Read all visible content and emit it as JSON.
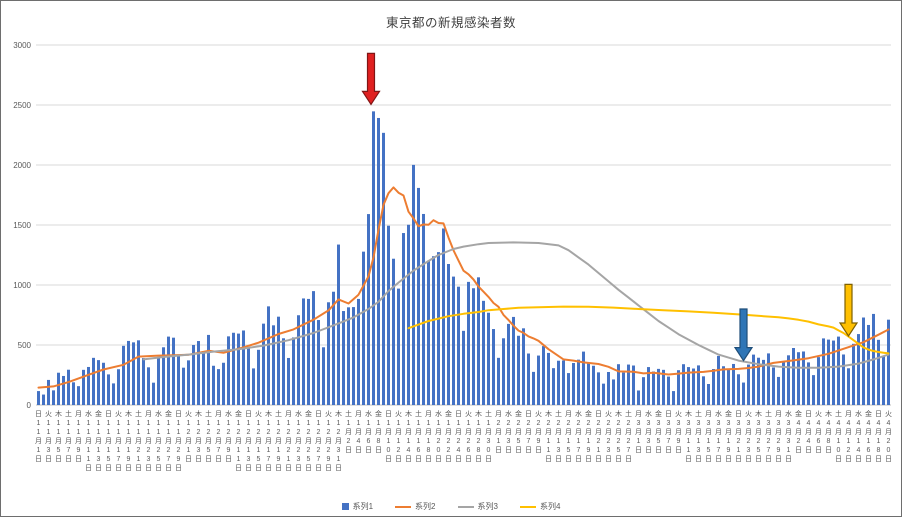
{
  "chart_data": {
    "type": "combo-bar-line",
    "title": "東京都の新規感染者数",
    "grid": true,
    "legend_position": "bottom",
    "y_axis": {
      "min": 0,
      "max": 3000,
      "tick_step": 500
    },
    "y_ticks": [
      0,
      500,
      1000,
      1500,
      2000,
      2500,
      3000
    ],
    "x_tick_interval_days": 2,
    "x_range": "11月1日〜4月20日",
    "colors": {
      "grid": "#d9d9d9",
      "axis_line": "#bfbfbf",
      "tick_text": "#595959",
      "title_text": "#404040",
      "frame_border": "#6e6e6e"
    },
    "x_tick_labels": [
      "日|11月1日",
      "火|11月3日",
      "木|11月5日",
      "土|11月7日",
      "月|11月9日",
      "水|11月11日",
      "金|11月13日",
      "日|11月15日",
      "火|11月17日",
      "木|11月19日",
      "土|11月21日",
      "月|11月23日",
      "水|11月25日",
      "金|11月27日",
      "日|11月29日",
      "火|12月1日",
      "木|12月3日",
      "土|12月5日",
      "月|12月7日",
      "水|12月9日",
      "金|12月11日",
      "日|12月13日",
      "火|12月15日",
      "木|12月17日",
      "土|12月19日",
      "月|12月21日",
      "水|12月23日",
      "金|12月25日",
      "日|12月27日",
      "火|12月29日",
      "木|12月31日",
      "土|1月2日",
      "月|1月4日",
      "水|1月6日",
      "金|1月8日",
      "日|1月10日",
      "火|1月12日",
      "木|1月14日",
      "土|1月16日",
      "月|1月18日",
      "水|1月20日",
      "金|1月22日",
      "日|1月24日",
      "火|1月26日",
      "木|1月28日",
      "土|1月30日",
      "月|2月1日",
      "水|2月3日",
      "金|2月5日",
      "日|2月7日",
      "火|2月9日",
      "木|2月11日",
      "土|2月13日",
      "月|2月15日",
      "水|2月17日",
      "金|2月19日",
      "日|2月21日",
      "火|2月23日",
      "木|2月25日",
      "土|2月27日",
      "月|3月1日",
      "水|3月3日",
      "金|3月5日",
      "日|3月7日",
      "火|3月9日",
      "木|3月11日",
      "土|3月13日",
      "月|3月15日",
      "水|3月17日",
      "金|3月19日",
      "日|3月21日",
      "火|3月23日",
      "木|3月25日",
      "土|3月27日",
      "月|3月29日",
      "水|3月31日",
      "金|4月2日",
      "日|4月4日",
      "火|4月6日",
      "木|4月8日",
      "土|4月10日",
      "月|4月12日",
      "水|4月14日",
      "金|4月16日",
      "日|4月18日",
      "火|4月20日"
    ],
    "series": [
      {
        "name": "系列1",
        "type": "bar",
        "color": "#4472C4",
        "values": [
          116,
          87,
          209,
          122,
          269,
          242,
          294,
          189,
          157,
          293,
          317,
          393,
          374,
          352,
          255,
          180,
          298,
          493,
          534,
          522,
          539,
          391,
          314,
          186,
          401,
          481,
          570,
          561,
          418,
          311,
          372,
          500,
          533,
          449,
          584,
          327,
          299,
          352,
          572,
          602,
          595,
          621,
          480,
          305,
          460,
          678,
          822,
          664,
          736,
          556,
          392,
          563,
          748,
          888,
          884,
          949,
          708,
          481,
          856,
          944,
          1337,
          783,
          814,
          816,
          884,
          1278,
          1591,
          2447,
          2392,
          2268,
          1494,
          1219,
          970,
          1433,
          1502,
          2001,
          1809,
          1592,
          1204,
          1240,
          1274,
          1471,
          1175,
          1070,
          986,
          618,
          1026,
          973,
          1064,
          868,
          769,
          633,
          393,
          556,
          676,
          734,
          577,
          639,
          429,
          276,
          412,
          491,
          434,
          307,
          369,
          371,
          266,
          350,
          378,
          445,
          353,
          327,
          272,
          178,
          275,
          213,
          340,
          270,
          337,
          329,
          121,
          232,
          316,
          279,
          301,
          293,
          237,
          116,
          290,
          340,
          316,
          304,
          330,
          239,
          175,
          300,
          409,
          323,
          303,
          342,
          256,
          187,
          337,
          420,
          394,
          376,
          430,
          313,
          234,
          364,
          414,
          475,
          440,
          446,
          355,
          249,
          399,
          555,
          545,
          537,
          570,
          421,
          306,
          510,
          591,
          729,
          667,
          759,
          543,
          405,
          711
        ]
      },
      {
        "name": "系列2",
        "type": "line",
        "color": "#ED7D31",
        "points": [
          [
            0,
            145
          ],
          [
            3,
            155
          ],
          [
            6,
            191
          ],
          [
            10,
            252
          ],
          [
            13,
            296
          ],
          [
            17,
            335
          ],
          [
            20,
            403
          ],
          [
            24,
            412
          ],
          [
            27,
            415
          ],
          [
            30,
            418
          ],
          [
            34,
            452
          ],
          [
            37,
            435
          ],
          [
            41,
            481
          ],
          [
            44,
            519
          ],
          [
            48,
            592
          ],
          [
            51,
            630
          ],
          [
            55,
            711
          ],
          [
            58,
            788
          ],
          [
            60,
            880
          ],
          [
            62,
            846
          ],
          [
            64,
            919
          ],
          [
            66,
            1072
          ],
          [
            67,
            1230
          ],
          [
            68,
            1460
          ],
          [
            69,
            1668
          ],
          [
            70,
            1765
          ],
          [
            71,
            1813
          ],
          [
            72,
            1769
          ],
          [
            73,
            1746
          ],
          [
            74,
            1611
          ],
          [
            75,
            1555
          ],
          [
            76,
            1490
          ],
          [
            77,
            1504
          ],
          [
            78,
            1502
          ],
          [
            79,
            1540
          ],
          [
            80,
            1517
          ],
          [
            81,
            1513
          ],
          [
            82,
            1395
          ],
          [
            83,
            1289
          ],
          [
            84,
            1203
          ],
          [
            85,
            1119
          ],
          [
            86,
            1089
          ],
          [
            87,
            1046
          ],
          [
            88,
            987
          ],
          [
            89,
            944
          ],
          [
            90,
            901
          ],
          [
            91,
            850
          ],
          [
            92,
            818
          ],
          [
            93,
            751
          ],
          [
            94,
            708
          ],
          [
            95,
            661
          ],
          [
            96,
            620
          ],
          [
            97,
            601
          ],
          [
            98,
            572
          ],
          [
            99,
            555
          ],
          [
            100,
            535
          ],
          [
            102,
            465
          ],
          [
            105,
            380
          ],
          [
            107,
            370
          ],
          [
            109,
            355
          ],
          [
            112,
            342
          ],
          [
            114,
            318
          ],
          [
            116,
            280
          ],
          [
            119,
            277
          ],
          [
            121,
            263
          ],
          [
            123,
            269
          ],
          [
            126,
            254
          ],
          [
            128,
            262
          ],
          [
            130,
            270
          ],
          [
            133,
            276
          ],
          [
            135,
            286
          ],
          [
            137,
            297
          ],
          [
            140,
            301
          ],
          [
            142,
            308
          ],
          [
            144,
            320
          ],
          [
            147,
            351
          ],
          [
            149,
            362
          ],
          [
            151,
            372
          ],
          [
            154,
            390
          ],
          [
            158,
            427
          ],
          [
            161,
            468
          ],
          [
            165,
            523
          ],
          [
            168,
            586
          ],
          [
            170,
            629
          ]
        ]
      },
      {
        "name": "系列3",
        "type": "line",
        "color": "#A5A5A5",
        "points": [
          [
            21,
            380
          ],
          [
            25,
            400
          ],
          [
            30,
            420
          ],
          [
            35,
            445
          ],
          [
            40,
            465
          ],
          [
            45,
            495
          ],
          [
            50,
            540
          ],
          [
            55,
            600
          ],
          [
            60,
            680
          ],
          [
            63,
            730
          ],
          [
            66,
            800
          ],
          [
            68,
            860
          ],
          [
            70,
            950
          ],
          [
            72,
            1020
          ],
          [
            75,
            1120
          ],
          [
            78,
            1200
          ],
          [
            80,
            1250
          ],
          [
            83,
            1300
          ],
          [
            85,
            1320
          ],
          [
            88,
            1340
          ],
          [
            90,
            1350
          ],
          [
            95,
            1355
          ],
          [
            100,
            1350
          ],
          [
            104,
            1330
          ],
          [
            106,
            1290
          ],
          [
            108,
            1230
          ],
          [
            110,
            1170
          ],
          [
            112,
            1100
          ],
          [
            114,
            1030
          ],
          [
            116,
            960
          ],
          [
            118,
            895
          ],
          [
            120,
            830
          ],
          [
            122,
            765
          ],
          [
            124,
            700
          ],
          [
            126,
            645
          ],
          [
            128,
            590
          ],
          [
            130,
            545
          ],
          [
            132,
            500
          ],
          [
            134,
            460
          ],
          [
            136,
            420
          ],
          [
            140,
            370
          ],
          [
            144,
            340
          ],
          [
            146,
            330
          ],
          [
            148,
            320
          ],
          [
            150,
            315
          ],
          [
            152,
            310
          ],
          [
            156,
            310
          ],
          [
            160,
            320
          ],
          [
            164,
            345
          ],
          [
            167,
            380
          ],
          [
            170,
            420
          ]
        ]
      },
      {
        "name": "系列4",
        "type": "line",
        "color": "#FFC000",
        "points": [
          [
            74,
            640
          ],
          [
            76,
            670
          ],
          [
            78,
            700
          ],
          [
            80,
            720
          ],
          [
            82,
            740
          ],
          [
            85,
            760
          ],
          [
            88,
            775
          ],
          [
            90,
            790
          ],
          [
            93,
            800
          ],
          [
            96,
            810
          ],
          [
            100,
            815
          ],
          [
            105,
            820
          ],
          [
            110,
            818
          ],
          [
            115,
            812
          ],
          [
            120,
            800
          ],
          [
            125,
            790
          ],
          [
            130,
            780
          ],
          [
            135,
            768
          ],
          [
            140,
            755
          ],
          [
            145,
            740
          ],
          [
            148,
            732
          ],
          [
            150,
            722
          ],
          [
            152,
            710
          ],
          [
            154,
            695
          ],
          [
            156,
            672
          ],
          [
            158,
            655
          ],
          [
            159,
            645
          ],
          [
            160,
            622
          ],
          [
            161,
            600
          ],
          [
            162,
            570
          ],
          [
            163,
            540
          ],
          [
            164,
            510
          ],
          [
            165,
            480
          ],
          [
            166,
            462
          ],
          [
            167,
            450
          ],
          [
            168,
            442
          ],
          [
            169,
            436
          ],
          [
            170,
            430
          ]
        ]
      }
    ],
    "annotations": [
      {
        "name": "red-down-arrow",
        "shape": "block-arrow-down",
        "fill": "#e02020",
        "stroke": "#801515",
        "day": 66.5,
        "from_value": 2930,
        "to_value": 2505
      },
      {
        "name": "blue-down-arrow",
        "shape": "block-arrow-down",
        "fill": "#2e75b6",
        "stroke": "#1f4e79",
        "day": 141,
        "from_value": 800,
        "to_value": 370
      },
      {
        "name": "yellow-down-arrow",
        "shape": "block-arrow-down",
        "fill": "#ffc000",
        "stroke": "#7f6000",
        "day": 162,
        "from_value": 1005,
        "to_value": 575
      }
    ]
  }
}
